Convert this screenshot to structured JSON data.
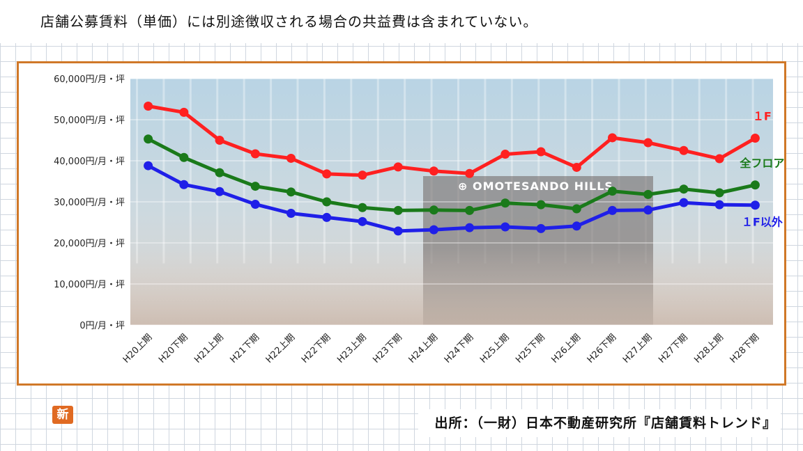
{
  "note": "店舗公募賃料（単価）には別途徴収される場合の共益費は含まれていない。",
  "source": "出所：（一財）日本不動産研究所『店舗賃料トレンド』",
  "badge": "新",
  "photo_sign": "OMOTESANDO HILLS",
  "chart_data": {
    "type": "line",
    "title": "",
    "xlabel": "",
    "ylabel": "",
    "ylim": [
      0,
      60000
    ],
    "y_ticks": [
      0,
      10000,
      20000,
      30000,
      40000,
      50000,
      60000
    ],
    "y_tick_labels": [
      "0円/月・坪",
      "10,000円/月・坪",
      "20,000円/月・坪",
      "30,000円/月・坪",
      "40,000円/月・坪",
      "50,000円/月・坪",
      "60,000円/月・坪"
    ],
    "grid": true,
    "legend_placement": "right",
    "categories": [
      "H20上期",
      "H20下期",
      "H21上期",
      "H21下期",
      "H22上期",
      "H22下期",
      "H23上期",
      "H23下期",
      "H24上期",
      "H24下期",
      "H25上期",
      "H25下期",
      "H26上期",
      "H26下期",
      "H27上期",
      "H27下期",
      "H28上期",
      "H28下期"
    ],
    "series": [
      {
        "name": "１F",
        "color": "#ff2020",
        "values": [
          53300,
          51800,
          45000,
          41700,
          40600,
          36800,
          36500,
          38500,
          37500,
          36900,
          41600,
          42200,
          38400,
          45600,
          44400,
          42500,
          40500,
          45500
        ]
      },
      {
        "name": "全フロア",
        "color": "#1a7a1a",
        "values": [
          45300,
          40800,
          37100,
          33800,
          32400,
          30000,
          28600,
          27900,
          28000,
          27900,
          29700,
          29300,
          28300,
          32600,
          31800,
          33100,
          32200,
          34100
        ]
      },
      {
        "name": "１F以外",
        "color": "#1f1fe8",
        "values": [
          38800,
          34200,
          32500,
          29400,
          27200,
          26200,
          25200,
          22900,
          23200,
          23700,
          23900,
          23500,
          24100,
          27900,
          28000,
          29800,
          29300,
          29200
        ]
      }
    ]
  }
}
